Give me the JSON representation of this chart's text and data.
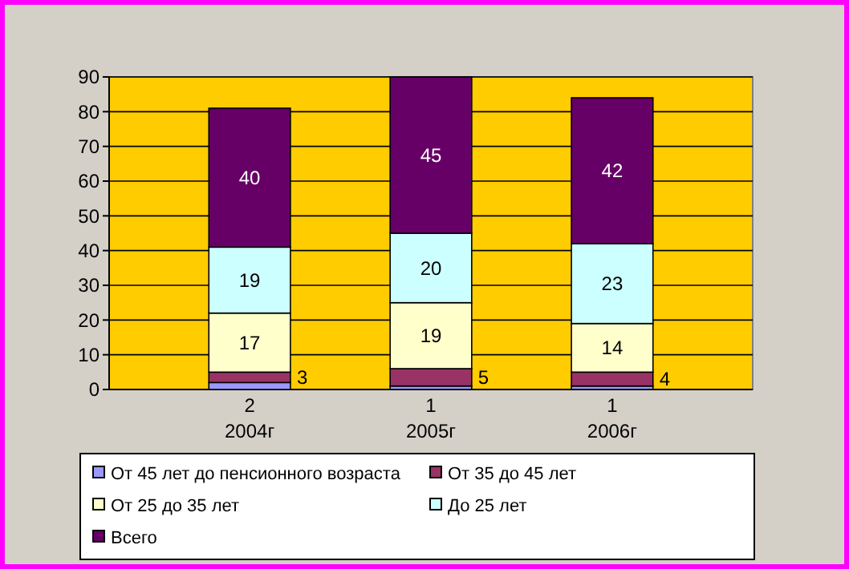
{
  "chart_data": {
    "type": "bar",
    "stacked": true,
    "categories": [
      "2004г",
      "2005г",
      "2006г"
    ],
    "series": [
      {
        "name": "От 45 лет до пенсионного возраста",
        "color": "#9999ff",
        "values": [
          2,
          1,
          1
        ]
      },
      {
        "name": "От 35 до 45 лет",
        "color": "#993366",
        "values": [
          3,
          5,
          4
        ]
      },
      {
        "name": "От 25 до 35 лет",
        "color": "#ffffcc",
        "values": [
          17,
          19,
          14
        ]
      },
      {
        "name": "До 25 лет",
        "color": "#ccffff",
        "values": [
          19,
          20,
          23
        ]
      },
      {
        "name": "Всего",
        "color": "#660066",
        "values": [
          40,
          45,
          42
        ]
      }
    ],
    "ylim": [
      0,
      90
    ],
    "yticks": [
      0,
      10,
      20,
      30,
      40,
      50,
      60,
      70,
      80,
      90
    ],
    "grid": "y",
    "legend": "bottom",
    "data_labels": true
  }
}
